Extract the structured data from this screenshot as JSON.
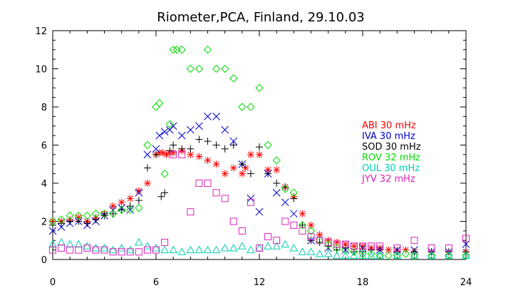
{
  "chart_data": {
    "type": "scatter",
    "title": "Riometer,PCA, Finland, 29.10.03",
    "xlim": [
      0,
      24
    ],
    "ylim": [
      0,
      12
    ],
    "xticks": [
      "0",
      "6",
      "12",
      "18",
      "24"
    ],
    "yticks": [
      "0",
      "2",
      "4",
      "6",
      "8",
      "10",
      "12"
    ],
    "grid": false,
    "legend_position": "right",
    "series": [
      {
        "name": "ABI 30 mHz",
        "color": "#ff0000",
        "marker": "asterisk",
        "points": [
          [
            0,
            2.0
          ],
          [
            0.5,
            2.0
          ],
          [
            1,
            2.1
          ],
          [
            1.5,
            2.2
          ],
          [
            2,
            2.0
          ],
          [
            2.5,
            2.2
          ],
          [
            3,
            2.4
          ],
          [
            3.5,
            2.8
          ],
          [
            4,
            3.0
          ],
          [
            4.5,
            3.2
          ],
          [
            5,
            3.6
          ],
          [
            5.5,
            4.0
          ],
          [
            6,
            5.5
          ],
          [
            6.2,
            5.6
          ],
          [
            6.4,
            5.6
          ],
          [
            6.6,
            5.5
          ],
          [
            6.8,
            5.6
          ],
          [
            7,
            5.6
          ],
          [
            7.5,
            5.7
          ],
          [
            8,
            5.5
          ],
          [
            8.5,
            5.4
          ],
          [
            9,
            5.2
          ],
          [
            9.5,
            5.0
          ],
          [
            10,
            4.5
          ],
          [
            10.5,
            4.8
          ],
          [
            11,
            4.5
          ],
          [
            11.2,
            4.8
          ],
          [
            11.5,
            5.5
          ],
          [
            12,
            5.5
          ],
          [
            12.5,
            4.7
          ],
          [
            13,
            4.7
          ],
          [
            13.5,
            3.8
          ],
          [
            14,
            3.3
          ],
          [
            14.5,
            2.4
          ],
          [
            15,
            1.8
          ],
          [
            15.5,
            1.3
          ],
          [
            16,
            1.0
          ],
          [
            16.5,
            0.9
          ],
          [
            17,
            0.8
          ],
          [
            17.5,
            0.7
          ],
          [
            18,
            0.7
          ],
          [
            18.5,
            0.6
          ],
          [
            19,
            0.6
          ],
          [
            19.5,
            0.5
          ],
          [
            20,
            0.5
          ],
          [
            20.5,
            0.5
          ],
          [
            21,
            0.4
          ],
          [
            22,
            0.4
          ],
          [
            23,
            0.4
          ],
          [
            24,
            0.4
          ]
        ]
      },
      {
        "name": "IVA 30 mHz",
        "color": "#0000d0",
        "marker": "x",
        "points": [
          [
            0,
            1.5
          ],
          [
            0.5,
            1.7
          ],
          [
            1,
            1.9
          ],
          [
            1.5,
            2.0
          ],
          [
            2,
            1.8
          ],
          [
            2.5,
            2.0
          ],
          [
            3,
            2.3
          ],
          [
            3.5,
            2.6
          ],
          [
            4,
            2.7
          ],
          [
            4.5,
            2.6
          ],
          [
            5,
            3.5
          ],
          [
            5.5,
            5.5
          ],
          [
            6,
            5.8
          ],
          [
            6.2,
            6.5
          ],
          [
            6.5,
            6.7
          ],
          [
            6.8,
            6.8
          ],
          [
            7,
            7.0
          ],
          [
            7.5,
            6.5
          ],
          [
            8,
            6.8
          ],
          [
            8.5,
            7.0
          ],
          [
            9,
            7.5
          ],
          [
            9.5,
            7.5
          ],
          [
            10,
            6.8
          ],
          [
            10.5,
            6.2
          ],
          [
            11,
            5.0
          ],
          [
            11.5,
            3.2
          ],
          [
            12,
            2.5
          ],
          [
            12.5,
            4.5
          ],
          [
            13,
            3.5
          ],
          [
            13.5,
            3.0
          ],
          [
            14,
            2.4
          ],
          [
            15,
            1.0
          ],
          [
            16,
            0.6
          ],
          [
            17,
            0.5
          ],
          [
            18,
            0.6
          ],
          [
            19,
            0.5
          ],
          [
            20,
            0.5
          ],
          [
            21,
            0.5
          ],
          [
            22,
            0.4
          ],
          [
            23,
            0.4
          ],
          [
            24,
            0.8
          ]
        ]
      },
      {
        "name": "SOD 30 mHz",
        "color": "#000000",
        "marker": "plus",
        "points": [
          [
            0,
            1.8
          ],
          [
            0.5,
            1.9
          ],
          [
            1,
            2.0
          ],
          [
            1.5,
            2.0
          ],
          [
            2,
            1.9
          ],
          [
            2.5,
            2.1
          ],
          [
            3,
            2.3
          ],
          [
            3.5,
            2.4
          ],
          [
            4,
            2.6
          ],
          [
            4.5,
            2.8
          ],
          [
            5,
            3.1
          ],
          [
            5.5,
            4.8
          ],
          [
            6,
            5.5
          ],
          [
            6.3,
            3.3
          ],
          [
            6.5,
            3.5
          ],
          [
            6.8,
            5.7
          ],
          [
            7,
            6.0
          ],
          [
            7.5,
            5.8
          ],
          [
            8,
            5.8
          ],
          [
            8.5,
            6.3
          ],
          [
            9,
            6.2
          ],
          [
            9.5,
            6.0
          ],
          [
            10,
            5.8
          ],
          [
            10.5,
            6.0
          ],
          [
            11,
            5.0
          ],
          [
            11.5,
            4.5
          ],
          [
            12,
            5.9
          ],
          [
            12.5,
            4.5
          ],
          [
            13,
            4.0
          ],
          [
            13.5,
            3.8
          ],
          [
            14,
            3.2
          ],
          [
            14.5,
            1.8
          ],
          [
            15,
            1.0
          ],
          [
            15.5,
            0.9
          ],
          [
            16,
            0.7
          ],
          [
            16.5,
            0.5
          ],
          [
            17,
            0.6
          ],
          [
            17.5,
            0.4
          ],
          [
            18,
            0.4
          ],
          [
            18.5,
            0.5
          ],
          [
            19,
            0.5
          ],
          [
            20,
            0.4
          ],
          [
            21,
            0.4
          ],
          [
            22,
            0.4
          ],
          [
            23,
            0.4
          ],
          [
            24,
            0.4
          ]
        ]
      },
      {
        "name": "ROV 32 mHz",
        "color": "#00dd00",
        "marker": "diamond",
        "points": [
          [
            0,
            2.0
          ],
          [
            0.5,
            2.1
          ],
          [
            1,
            2.3
          ],
          [
            1.5,
            2.3
          ],
          [
            2,
            2.3
          ],
          [
            2.5,
            2.4
          ],
          [
            3,
            2.4
          ],
          [
            3.5,
            2.4
          ],
          [
            4,
            2.6
          ],
          [
            4.5,
            2.6
          ],
          [
            5,
            2.7
          ],
          [
            5.5,
            6.0
          ],
          [
            6,
            8.0
          ],
          [
            6.2,
            8.2
          ],
          [
            6.5,
            4.5
          ],
          [
            6.8,
            7.1
          ],
          [
            7,
            11.0
          ],
          [
            7.2,
            11.0
          ],
          [
            7.5,
            11.0
          ],
          [
            8,
            10.0
          ],
          [
            8.5,
            10.0
          ],
          [
            9,
            11.0
          ],
          [
            9.5,
            10.0
          ],
          [
            10,
            10.0
          ],
          [
            10.5,
            9.5
          ],
          [
            11,
            8.0
          ],
          [
            11.5,
            8.0
          ],
          [
            12,
            9.0
          ],
          [
            12.5,
            6.0
          ],
          [
            13,
            5.2
          ],
          [
            13.5,
            3.7
          ],
          [
            14,
            3.5
          ],
          [
            14.5,
            1.8
          ],
          [
            15,
            1.5
          ],
          [
            15.5,
            1.0
          ],
          [
            16,
            0.8
          ],
          [
            16.5,
            0.6
          ],
          [
            17,
            0.5
          ],
          [
            17.5,
            0.4
          ],
          [
            18,
            0.3
          ],
          [
            18.5,
            0.3
          ],
          [
            19,
            0.2
          ],
          [
            19.5,
            0.2
          ],
          [
            20,
            0.2
          ],
          [
            20.5,
            0.3
          ],
          [
            21,
            0.2
          ],
          [
            22,
            0.2
          ],
          [
            23,
            0.2
          ],
          [
            24,
            0.2
          ]
        ]
      },
      {
        "name": "OUL 30 mHz",
        "color": "#00d0b0",
        "marker": "triangle",
        "points": [
          [
            0,
            0.8
          ],
          [
            0.5,
            0.9
          ],
          [
            1,
            0.8
          ],
          [
            1.5,
            0.8
          ],
          [
            2,
            0.7
          ],
          [
            2.5,
            0.6
          ],
          [
            3,
            0.6
          ],
          [
            3.5,
            0.5
          ],
          [
            4,
            0.6
          ],
          [
            4.5,
            0.5
          ],
          [
            5,
            0.9
          ],
          [
            5.5,
            0.7
          ],
          [
            6,
            0.6
          ],
          [
            6.5,
            0.5
          ],
          [
            7,
            0.5
          ],
          [
            7.5,
            0.4
          ],
          [
            8,
            0.5
          ],
          [
            8.5,
            0.5
          ],
          [
            9,
            0.5
          ],
          [
            9.5,
            0.5
          ],
          [
            10,
            0.6
          ],
          [
            10.5,
            0.6
          ],
          [
            11,
            0.7
          ],
          [
            11.5,
            0.5
          ],
          [
            12,
            0.6
          ],
          [
            12.5,
            0.7
          ],
          [
            13,
            0.7
          ],
          [
            13.5,
            0.8
          ],
          [
            14,
            0.6
          ],
          [
            14.5,
            0.4
          ],
          [
            15,
            0.4
          ],
          [
            15.5,
            0.3
          ],
          [
            16,
            0.3
          ],
          [
            16.5,
            0.2
          ],
          [
            17,
            0.2
          ],
          [
            17.5,
            0.2
          ],
          [
            18,
            0.2
          ],
          [
            18.5,
            0.2
          ],
          [
            19,
            0.2
          ],
          [
            20,
            0.2
          ],
          [
            21,
            0.2
          ],
          [
            22,
            0.2
          ],
          [
            23,
            0.2
          ],
          [
            24,
            0.2
          ]
        ]
      },
      {
        "name": "JYV 32 mHz",
        "color": "#dd22bb",
        "marker": "square",
        "points": [
          [
            0,
            0.5
          ],
          [
            0.5,
            0.6
          ],
          [
            1,
            0.5
          ],
          [
            1.5,
            0.5
          ],
          [
            2,
            0.6
          ],
          [
            2.5,
            0.5
          ],
          [
            3,
            0.5
          ],
          [
            3.5,
            0.4
          ],
          [
            4,
            0.4
          ],
          [
            4.5,
            0.4
          ],
          [
            5,
            0.4
          ],
          [
            5.5,
            0.5
          ],
          [
            6,
            0.5
          ],
          [
            6.5,
            0.9
          ],
          [
            7,
            5.5
          ],
          [
            7.5,
            5.5
          ],
          [
            8,
            2.5
          ],
          [
            8.5,
            4.0
          ],
          [
            9,
            4.0
          ],
          [
            9.5,
            3.5
          ],
          [
            10,
            3.2
          ],
          [
            10.5,
            2.0
          ],
          [
            11,
            1.5
          ],
          [
            11.5,
            3.0
          ],
          [
            12,
            0.6
          ],
          [
            12.5,
            1.2
          ],
          [
            13,
            1.0
          ],
          [
            13.5,
            2.0
          ],
          [
            14,
            1.8
          ],
          [
            14.5,
            1.5
          ],
          [
            15,
            1.2
          ],
          [
            15.5,
            1.0
          ],
          [
            16,
            0.9
          ],
          [
            16.5,
            0.8
          ],
          [
            17,
            0.8
          ],
          [
            17.5,
            0.7
          ],
          [
            18,
            0.7
          ],
          [
            18.5,
            0.7
          ],
          [
            19,
            0.7
          ],
          [
            20,
            0.6
          ],
          [
            21,
            1.0
          ],
          [
            22,
            0.6
          ],
          [
            23,
            0.6
          ],
          [
            24,
            1.1
          ]
        ]
      }
    ]
  }
}
